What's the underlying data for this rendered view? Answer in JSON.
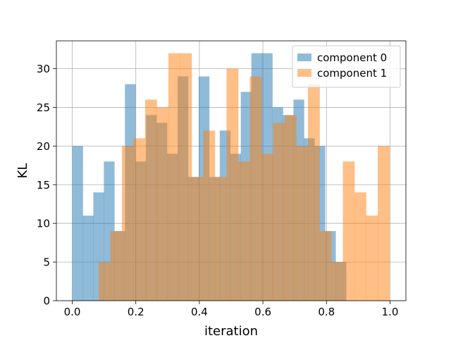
{
  "chart_data": {
    "type": "bar",
    "subtype": "histogram",
    "xlabel": "iteration",
    "ylabel": "KL",
    "xlim": [
      -0.05,
      1.05
    ],
    "ylim": [
      0,
      33.6
    ],
    "xticks": [
      0.0,
      0.2,
      0.4,
      0.6,
      0.8,
      1.0
    ],
    "xtick_labels": [
      "0.0",
      "0.2",
      "0.4",
      "0.6",
      "0.8",
      "1.0"
    ],
    "yticks": [
      0,
      5,
      10,
      15,
      20,
      25,
      30
    ],
    "ytick_labels": [
      "0",
      "5",
      "10",
      "15",
      "20",
      "25",
      "30"
    ],
    "grid": true,
    "alpha": 0.5,
    "legend_position": "top-right",
    "series": [
      {
        "name": "component 0",
        "color": "#1f77b4",
        "bin_start": 0.0,
        "bin_end": 0.9945,
        "values": [
          20,
          11,
          14,
          18,
          9,
          28,
          18,
          24,
          23,
          19,
          29,
          16,
          29,
          16,
          22,
          19,
          27,
          32,
          32,
          25,
          24,
          26,
          21,
          20,
          9,
          5,
          0,
          0,
          0,
          0
        ]
      },
      {
        "name": "component 1",
        "color": "#ff7f0e",
        "bin_start": 0.083,
        "bin_end": 0.998,
        "values": [
          5,
          9,
          20,
          21,
          26,
          25,
          32,
          32,
          16,
          22,
          16,
          30,
          18,
          29,
          19,
          23,
          24,
          20,
          28,
          9,
          5,
          18,
          14,
          11,
          20
        ]
      }
    ]
  }
}
